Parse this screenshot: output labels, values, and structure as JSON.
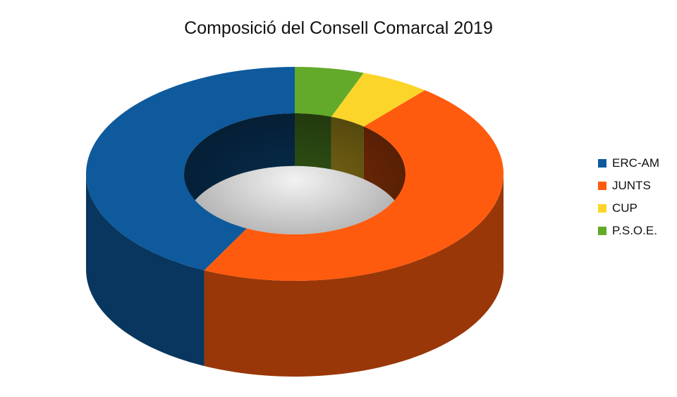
{
  "chart_data": {
    "type": "pie",
    "style": "3d-donut",
    "title": "Composició del Consell Comarcal 2019",
    "categories": [
      "ERC-AM",
      "JUNTS",
      "CUP",
      "P.S.O.E."
    ],
    "values": [
      12,
      13,
      1.5,
      1.5
    ],
    "colors": [
      "#0e5a9c",
      "#ff5b0e",
      "#fbd52a",
      "#63a92a"
    ],
    "legend_position": "right"
  }
}
